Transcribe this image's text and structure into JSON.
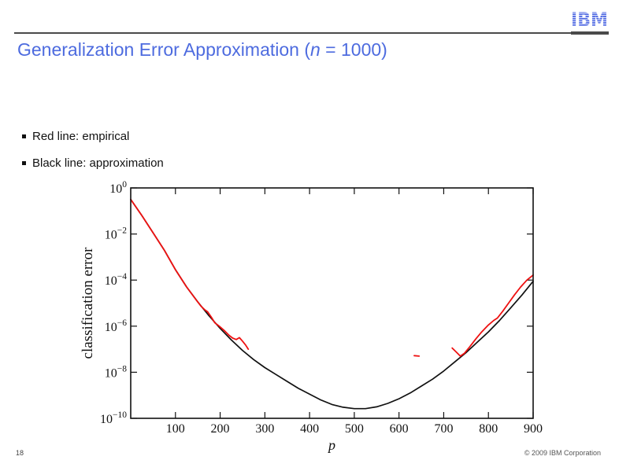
{
  "slide": {
    "logo_text": "IBM",
    "title": {
      "prefix": "Generalization Error Approximation (",
      "var": "n",
      "suffix": " = 1000)"
    },
    "bullets": [
      "Red line: empirical",
      "Black line: approximation"
    ],
    "page_number": "18",
    "copyright": "© 2009 IBM Corporation"
  },
  "colors": {
    "title_blue": "#4D6BDF",
    "logo_blue": "#4C66E2",
    "empirical_red": "#EE1111",
    "approximation_black": "#111111"
  },
  "chart_data": {
    "type": "line",
    "title": "",
    "xlabel": "p",
    "ylabel": "classification error",
    "xlim": [
      0,
      900
    ],
    "x_ticks": [
      100,
      200,
      300,
      400,
      500,
      600,
      700,
      800,
      900
    ],
    "y_scale": "log10",
    "y_tick_exponents": [
      "0",
      "−2",
      "−4",
      "−6",
      "−8",
      "−10"
    ],
    "ylim_exponents": [
      0,
      -10
    ],
    "grid": false,
    "legend": "described in slide bullets (red = empirical, black = approximation)",
    "series": [
      {
        "id": "black-approximation-curve",
        "name": "approximation (black line)",
        "color": "#111111",
        "width": 1.7,
        "points": [
          [
            0,
            -0.5
          ],
          [
            25,
            -1.2
          ],
          [
            50,
            -1.95
          ],
          [
            75,
            -2.7
          ],
          [
            100,
            -3.55
          ],
          [
            125,
            -4.3
          ],
          [
            150,
            -4.95
          ],
          [
            175,
            -5.55
          ],
          [
            200,
            -6.1
          ],
          [
            225,
            -6.6
          ],
          [
            250,
            -7.05
          ],
          [
            275,
            -7.45
          ],
          [
            300,
            -7.8
          ],
          [
            325,
            -8.1
          ],
          [
            350,
            -8.4
          ],
          [
            375,
            -8.7
          ],
          [
            400,
            -8.95
          ],
          [
            425,
            -9.2
          ],
          [
            450,
            -9.4
          ],
          [
            475,
            -9.52
          ],
          [
            500,
            -9.58
          ],
          [
            525,
            -9.58
          ],
          [
            550,
            -9.5
          ],
          [
            575,
            -9.35
          ],
          [
            600,
            -9.15
          ],
          [
            625,
            -8.9
          ],
          [
            650,
            -8.6
          ],
          [
            675,
            -8.3
          ],
          [
            700,
            -7.95
          ],
          [
            725,
            -7.55
          ],
          [
            750,
            -7.15
          ],
          [
            775,
            -6.7
          ],
          [
            800,
            -6.25
          ],
          [
            825,
            -5.75
          ],
          [
            850,
            -5.2
          ],
          [
            875,
            -4.65
          ],
          [
            900,
            -4.05
          ]
        ]
      },
      {
        "id": "red-empirical-segment-1",
        "name": "empirical (red line) segment 1",
        "color": "#EE1111",
        "width": 1.8,
        "points": [
          [
            0,
            -0.5
          ],
          [
            25,
            -1.2
          ],
          [
            50,
            -1.95
          ],
          [
            75,
            -2.7
          ],
          [
            100,
            -3.55
          ],
          [
            125,
            -4.3
          ],
          [
            148,
            -4.9
          ],
          [
            158,
            -5.15
          ],
          [
            165,
            -5.28
          ],
          [
            172,
            -5.38
          ],
          [
            180,
            -5.6
          ],
          [
            188,
            -5.85
          ],
          [
            198,
            -6.0
          ],
          [
            210,
            -6.2
          ],
          [
            220,
            -6.4
          ],
          [
            228,
            -6.52
          ],
          [
            236,
            -6.58
          ],
          [
            243,
            -6.5
          ],
          [
            250,
            -6.65
          ],
          [
            257,
            -6.82
          ],
          [
            263,
            -7.0
          ]
        ]
      },
      {
        "id": "red-empirical-dash",
        "name": "empirical (red line) isolated dash",
        "color": "#EE1111",
        "width": 1.8,
        "points": [
          [
            634,
            -7.28
          ],
          [
            645,
            -7.3
          ]
        ]
      },
      {
        "id": "red-empirical-segment-2",
        "name": "empirical (red line) segment 2",
        "color": "#EE1111",
        "width": 1.8,
        "points": [
          [
            719,
            -6.95
          ],
          [
            728,
            -7.12
          ],
          [
            737,
            -7.3
          ],
          [
            746,
            -7.18
          ],
          [
            758,
            -6.9
          ],
          [
            772,
            -6.55
          ],
          [
            785,
            -6.25
          ],
          [
            800,
            -5.95
          ],
          [
            812,
            -5.75
          ],
          [
            820,
            -5.65
          ],
          [
            832,
            -5.35
          ],
          [
            845,
            -5.0
          ],
          [
            858,
            -4.65
          ],
          [
            872,
            -4.3
          ],
          [
            886,
            -4.0
          ],
          [
            900,
            -3.78
          ]
        ]
      }
    ]
  }
}
